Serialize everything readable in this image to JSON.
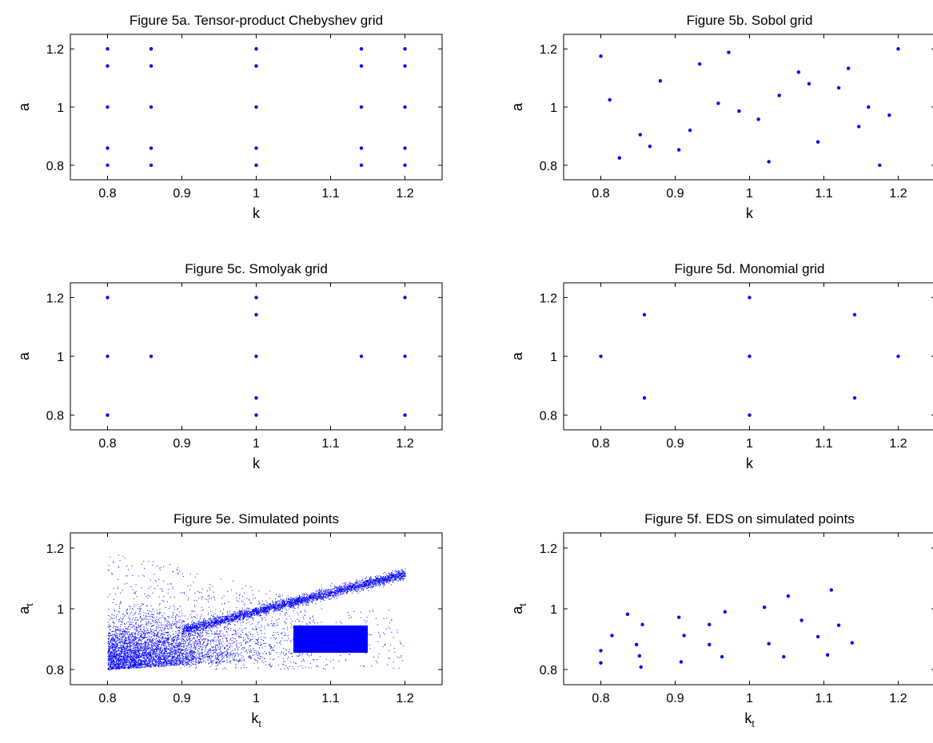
{
  "chart_data": [
    {
      "type": "scatter",
      "title": "Figure 5a. Tensor-product Chebyshev grid",
      "xlabel": "k",
      "ylabel": "a",
      "xlim": [
        0.75,
        1.25
      ],
      "ylim": [
        0.75,
        1.25
      ],
      "xticks": [
        "0.8",
        "0.9",
        "1",
        "1.1",
        "1.2"
      ],
      "yticks": [
        "0.8",
        "1",
        "1.2"
      ],
      "color": "#0000ff",
      "points": [
        [
          0.8,
          0.8
        ],
        [
          0.8,
          0.8586
        ],
        [
          0.8,
          1
        ],
        [
          0.8,
          1.1414
        ],
        [
          0.8,
          1.2
        ],
        [
          0.8586,
          0.8
        ],
        [
          0.8586,
          0.8586
        ],
        [
          0.8586,
          1
        ],
        [
          0.8586,
          1.1414
        ],
        [
          0.8586,
          1.2
        ],
        [
          1,
          0.8
        ],
        [
          1,
          0.8586
        ],
        [
          1,
          1
        ],
        [
          1,
          1.1414
        ],
        [
          1,
          1.2
        ],
        [
          1.1414,
          0.8
        ],
        [
          1.1414,
          0.8586
        ],
        [
          1.1414,
          1
        ],
        [
          1.1414,
          1.1414
        ],
        [
          1.1414,
          1.2
        ],
        [
          1.2,
          0.8
        ],
        [
          1.2,
          0.8586
        ],
        [
          1.2,
          1
        ],
        [
          1.2,
          1.1414
        ],
        [
          1.2,
          1.2
        ]
      ]
    },
    {
      "type": "scatter",
      "title": "Figure 5b. Sobol grid",
      "xlabel": "k",
      "ylabel": "a",
      "xlim": [
        0.75,
        1.25
      ],
      "ylim": [
        0.75,
        1.25
      ],
      "xticks": [
        "0.8",
        "0.9",
        "1",
        "1.1",
        "1.2"
      ],
      "yticks": [
        "0.8",
        "1",
        "1.2"
      ],
      "color": "#0000ff",
      "points": [
        [
          0.8,
          1.175
        ],
        [
          0.812,
          1.025
        ],
        [
          0.825,
          0.825
        ],
        [
          0.853,
          0.905
        ],
        [
          0.866,
          0.865
        ],
        [
          0.88,
          1.09
        ],
        [
          0.905,
          0.853
        ],
        [
          0.92,
          0.92
        ],
        [
          0.933,
          1.148
        ],
        [
          0.958,
          1.013
        ],
        [
          0.972,
          1.188
        ],
        [
          0.986,
          0.986
        ],
        [
          1.012,
          0.958
        ],
        [
          1.026,
          0.812
        ],
        [
          1.04,
          1.04
        ],
        [
          1.066,
          1.12
        ],
        [
          1.08,
          1.08
        ],
        [
          1.092,
          0.88
        ],
        [
          1.12,
          1.066
        ],
        [
          1.133,
          1.133
        ],
        [
          1.147,
          0.933
        ],
        [
          1.16,
          1.0
        ],
        [
          1.175,
          0.8
        ],
        [
          1.188,
          0.972
        ],
        [
          1.2,
          1.2
        ]
      ]
    },
    {
      "type": "scatter",
      "title": "Figure 5c. Smolyak grid",
      "xlabel": "k",
      "ylabel": "a",
      "xlim": [
        0.75,
        1.25
      ],
      "ylim": [
        0.75,
        1.25
      ],
      "xticks": [
        "0.8",
        "0.9",
        "1",
        "1.1",
        "1.2"
      ],
      "yticks": [
        "0.8",
        "1",
        "1.2"
      ],
      "color": "#0000ff",
      "points": [
        [
          0.8,
          0.8
        ],
        [
          0.8,
          1
        ],
        [
          0.8,
          1.2
        ],
        [
          0.8586,
          1
        ],
        [
          1,
          0.8
        ],
        [
          1,
          0.8586
        ],
        [
          1,
          1
        ],
        [
          1,
          1.1414
        ],
        [
          1,
          1.2
        ],
        [
          1.1414,
          1
        ],
        [
          1.2,
          0.8
        ],
        [
          1.2,
          1
        ],
        [
          1.2,
          1.2
        ]
      ]
    },
    {
      "type": "scatter",
      "title": "Figure 5d. Monomial grid",
      "xlabel": "k",
      "ylabel": "a",
      "xlim": [
        0.75,
        1.25
      ],
      "ylim": [
        0.75,
        1.25
      ],
      "xticks": [
        "0.8",
        "0.9",
        "1",
        "1.1",
        "1.2"
      ],
      "yticks": [
        "0.8",
        "1",
        "1.2"
      ],
      "color": "#0000ff",
      "points": [
        [
          0.8,
          1
        ],
        [
          0.8586,
          0.8586
        ],
        [
          0.8586,
          1.1414
        ],
        [
          1,
          0.8
        ],
        [
          1,
          1
        ],
        [
          1,
          1.2
        ],
        [
          1.1414,
          0.8586
        ],
        [
          1.1414,
          1.1414
        ],
        [
          1.2,
          1
        ]
      ]
    },
    {
      "type": "scatter",
      "title": "Figure 5e. Simulated points",
      "xlabel": "k",
      "xlabel_sub": "t",
      "ylabel": "a",
      "ylabel_sub": "t",
      "xlim": [
        0.75,
        1.25
      ],
      "ylim": [
        0.75,
        1.25
      ],
      "xticks": [
        "0.8",
        "0.9",
        "1",
        "1.1",
        "1.2"
      ],
      "yticks": [
        "0.8",
        "1",
        "1.2"
      ],
      "color": "#0000ff",
      "dense_cloud": true,
      "regions": [
        {
          "desc": "dense cloud",
          "x": [
            0.8,
            1.2
          ],
          "y": [
            0.8,
            1.2
          ]
        },
        {
          "desc": "filled rectangle",
          "x": [
            1.05,
            1.15
          ],
          "y": [
            0.855,
            0.945
          ]
        }
      ]
    },
    {
      "type": "scatter",
      "title": "Figure 5f. EDS on simulated points",
      "xlabel": "k",
      "xlabel_sub": "t",
      "ylabel": "a",
      "ylabel_sub": "t",
      "xlim": [
        0.75,
        1.25
      ],
      "ylim": [
        0.75,
        1.25
      ],
      "xticks": [
        "0.8",
        "0.9",
        "1",
        "1.1",
        "1.2"
      ],
      "yticks": [
        "0.8",
        "1",
        "1.2"
      ],
      "color": "#0000ff",
      "points": [
        [
          0.8,
          0.862
        ],
        [
          0.8,
          0.822
        ],
        [
          0.815,
          0.912
        ],
        [
          0.836,
          0.982
        ],
        [
          0.848,
          0.882
        ],
        [
          0.852,
          0.845
        ],
        [
          0.854,
          0.808
        ],
        [
          0.856,
          0.948
        ],
        [
          0.905,
          0.972
        ],
        [
          0.908,
          0.825
        ],
        [
          0.912,
          0.912
        ],
        [
          0.946,
          0.948
        ],
        [
          0.946,
          0.882
        ],
        [
          0.963,
          0.842
        ],
        [
          0.967,
          0.99
        ],
        [
          1.02,
          1.005
        ],
        [
          1.026,
          0.885
        ],
        [
          1.046,
          0.842
        ],
        [
          1.052,
          1.042
        ],
        [
          1.07,
          0.962
        ],
        [
          1.092,
          0.908
        ],
        [
          1.105,
          0.848
        ],
        [
          1.11,
          1.062
        ],
        [
          1.12,
          0.946
        ],
        [
          1.138,
          0.888
        ]
      ]
    }
  ]
}
